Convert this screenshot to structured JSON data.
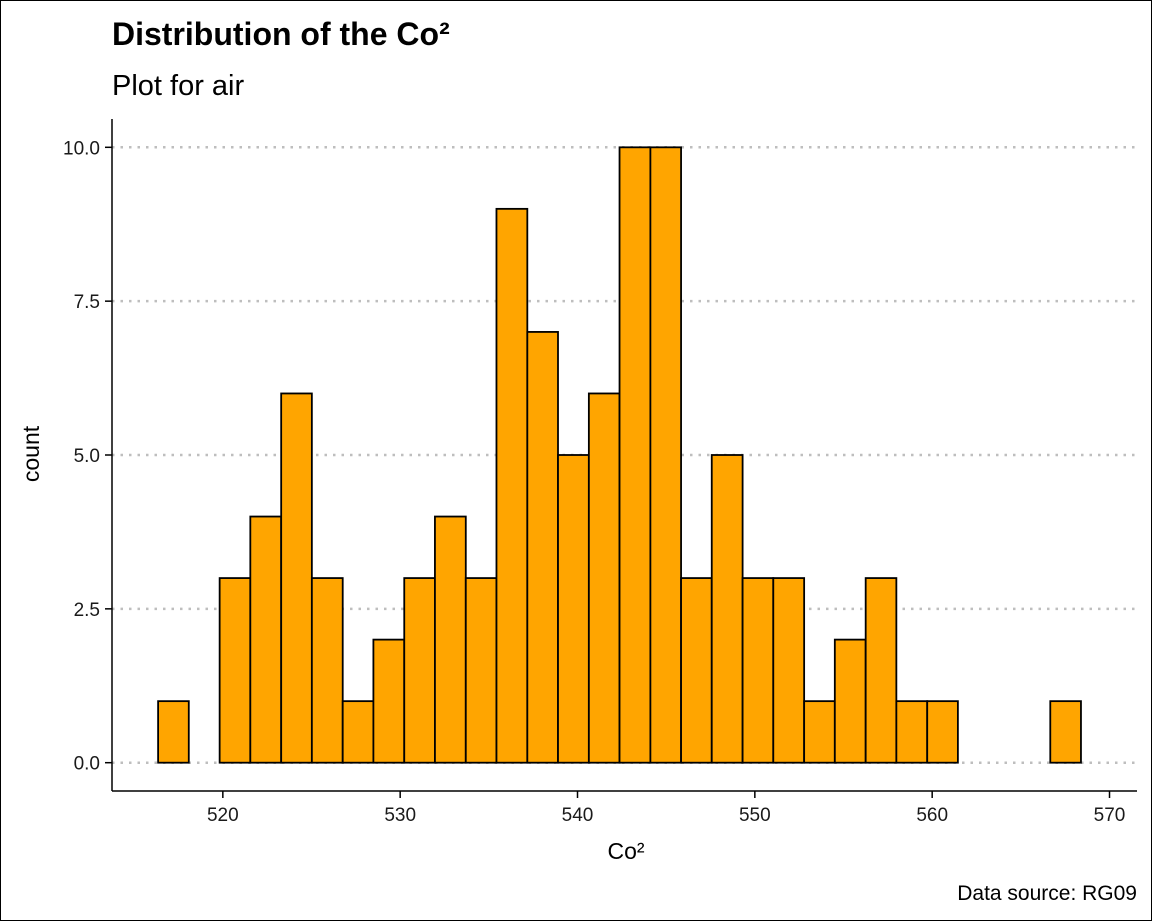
{
  "chart_data": {
    "type": "bar",
    "title": "Distribution of the Co²",
    "subtitle": "Plot for air",
    "xlabel": "Co²",
    "ylabel": "count",
    "caption": "Data source: RG09",
    "bin_width": 1.7345,
    "bins": [
      {
        "x0": 516.35,
        "x1": 518.08,
        "count": 1
      },
      {
        "x0": 518.08,
        "x1": 519.82,
        "count": 0
      },
      {
        "x0": 519.82,
        "x1": 521.55,
        "count": 3
      },
      {
        "x0": 521.55,
        "x1": 523.29,
        "count": 4
      },
      {
        "x0": 523.29,
        "x1": 525.02,
        "count": 6
      },
      {
        "x0": 525.02,
        "x1": 526.76,
        "count": 3
      },
      {
        "x0": 526.76,
        "x1": 528.49,
        "count": 1
      },
      {
        "x0": 528.49,
        "x1": 530.23,
        "count": 2
      },
      {
        "x0": 530.23,
        "x1": 531.96,
        "count": 3
      },
      {
        "x0": 531.96,
        "x1": 533.7,
        "count": 4
      },
      {
        "x0": 533.7,
        "x1": 535.43,
        "count": 3
      },
      {
        "x0": 535.43,
        "x1": 537.17,
        "count": 9
      },
      {
        "x0": 537.17,
        "x1": 538.9,
        "count": 7
      },
      {
        "x0": 538.9,
        "x1": 540.64,
        "count": 5
      },
      {
        "x0": 540.64,
        "x1": 542.37,
        "count": 6
      },
      {
        "x0": 542.37,
        "x1": 544.11,
        "count": 10
      },
      {
        "x0": 544.11,
        "x1": 545.84,
        "count": 10
      },
      {
        "x0": 545.84,
        "x1": 547.57,
        "count": 3
      },
      {
        "x0": 547.57,
        "x1": 549.31,
        "count": 5
      },
      {
        "x0": 549.31,
        "x1": 551.04,
        "count": 3
      },
      {
        "x0": 551.04,
        "x1": 552.78,
        "count": 3
      },
      {
        "x0": 552.78,
        "x1": 554.51,
        "count": 1
      },
      {
        "x0": 554.51,
        "x1": 556.25,
        "count": 2
      },
      {
        "x0": 556.25,
        "x1": 557.98,
        "count": 3
      },
      {
        "x0": 557.98,
        "x1": 559.72,
        "count": 1
      },
      {
        "x0": 559.72,
        "x1": 561.45,
        "count": 1
      },
      {
        "x0": 561.45,
        "x1": 563.19,
        "count": 0
      },
      {
        "x0": 563.19,
        "x1": 564.92,
        "count": 0
      },
      {
        "x0": 564.92,
        "x1": 566.66,
        "count": 0
      },
      {
        "x0": 566.66,
        "x1": 568.39,
        "count": 1
      }
    ],
    "x_ticks": [
      520,
      530,
      540,
      550,
      560,
      570
    ],
    "x_tick_labels": [
      "520",
      "530",
      "540",
      "550",
      "560",
      "570"
    ],
    "y_ticks": [
      0,
      2.5,
      5,
      7.5,
      10
    ],
    "y_tick_labels": [
      "0.0",
      "2.5",
      "5.0",
      "7.5",
      "10.0"
    ],
    "xlim": [
      513.75,
      571.55
    ],
    "ylim": [
      -0.46,
      10.46
    ],
    "grid": "horizontal dotted",
    "legend": "none",
    "colors": {
      "fill": "#FFA500",
      "outline": "#000000",
      "grid": "#bebebe"
    }
  }
}
